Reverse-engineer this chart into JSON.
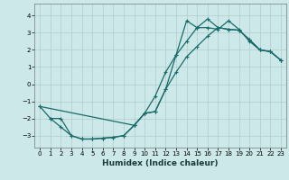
{
  "xlabel": "Humidex (Indice chaleur)",
  "bg_color": "#cce8e8",
  "grid_color": "#b0cccc",
  "line_color": "#1a6b6b",
  "xlim": [
    -0.5,
    23.5
  ],
  "ylim": [
    -3.7,
    4.7
  ],
  "xticks": [
    0,
    1,
    2,
    3,
    4,
    5,
    6,
    7,
    8,
    9,
    10,
    11,
    12,
    13,
    14,
    15,
    16,
    17,
    18,
    19,
    20,
    21,
    22,
    23
  ],
  "yticks": [
    -3,
    -2,
    -1,
    0,
    1,
    2,
    3,
    4
  ],
  "curve1_x": [
    0,
    1,
    2,
    3,
    4,
    5,
    6,
    7,
    8,
    9,
    10,
    11,
    12,
    13,
    14,
    15,
    16,
    17,
    18,
    19,
    20,
    21,
    22,
    23
  ],
  "curve1_y": [
    -1.3,
    -2.0,
    -2.0,
    -3.0,
    -3.2,
    -3.2,
    -3.15,
    -3.1,
    -3.0,
    -2.4,
    -1.7,
    -1.6,
    -0.3,
    1.7,
    3.7,
    3.3,
    3.3,
    3.2,
    3.7,
    3.2,
    2.5,
    2.0,
    1.9,
    1.4
  ],
  "curve2_x": [
    1,
    2,
    3,
    4,
    5,
    6,
    7,
    8,
    9,
    10,
    11,
    12,
    13,
    14,
    15,
    16,
    17,
    18,
    19,
    20,
    21,
    22,
    23
  ],
  "curve2_y": [
    -2.0,
    -2.5,
    -3.0,
    -3.2,
    -3.2,
    -3.15,
    -3.1,
    -3.0,
    -2.4,
    -1.7,
    -1.6,
    -0.3,
    0.7,
    1.6,
    2.2,
    2.8,
    3.3,
    3.2,
    3.15,
    2.6,
    2.0,
    1.9,
    1.4
  ],
  "curve3_x": [
    0,
    9,
    10,
    11,
    12,
    13,
    14,
    15,
    16,
    17,
    18,
    19,
    20,
    21,
    22,
    23
  ],
  "curve3_y": [
    -1.3,
    -2.4,
    -1.7,
    -0.7,
    0.7,
    1.7,
    2.5,
    3.3,
    3.8,
    3.3,
    3.2,
    3.15,
    2.6,
    2.0,
    1.9,
    1.4
  ]
}
